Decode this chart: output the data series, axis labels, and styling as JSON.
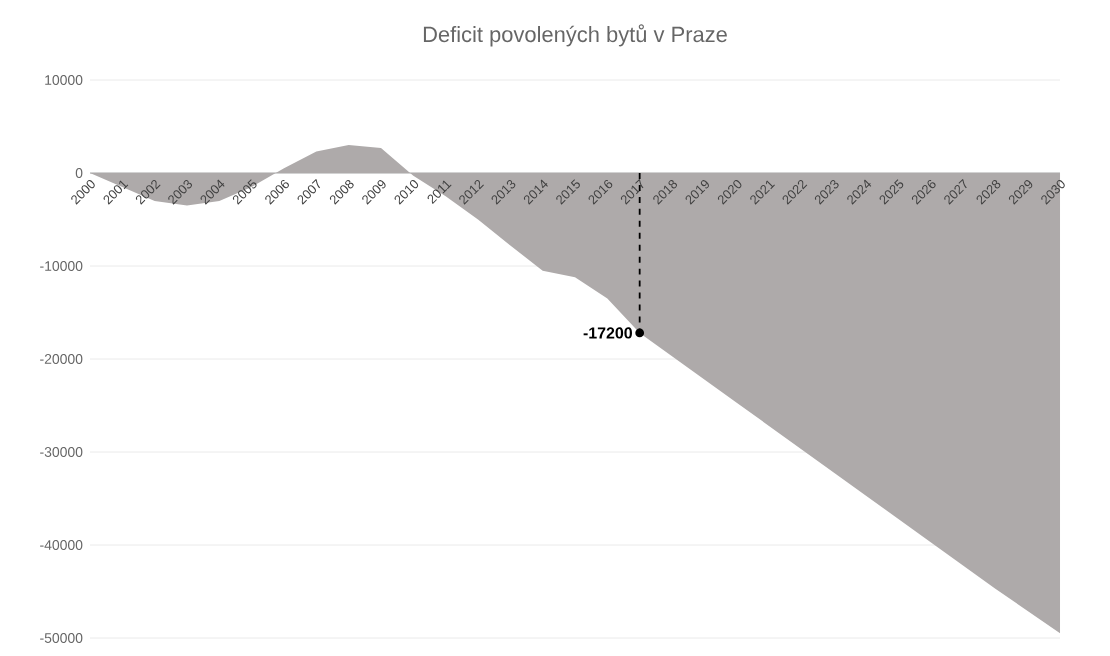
{
  "chart_data": {
    "type": "area",
    "title": "Deficit povolených bytů v Praze",
    "x": [
      2000,
      2001,
      2002,
      2003,
      2004,
      2005,
      2006,
      2007,
      2008,
      2009,
      2010,
      2011,
      2012,
      2013,
      2014,
      2015,
      2016,
      2017,
      2018,
      2019,
      2020,
      2021,
      2022,
      2023,
      2024,
      2025,
      2026,
      2027,
      2028,
      2029,
      2030
    ],
    "series": [
      {
        "color": "#aeaaaa",
        "values": [
          0,
          -1500,
          -3000,
          -3500,
          -3000,
          -1500,
          500,
          2300,
          3000,
          2700,
          -300,
          -2500,
          -5000,
          -7800,
          -10500,
          -11200,
          -13500,
          -17200,
          -19700,
          -22200,
          -24700,
          -27200,
          -29700,
          -32200,
          -34700,
          -37200,
          -39700,
          -42200,
          -44700,
          -47100,
          -49500
        ]
      }
    ],
    "xlim": [
      2000,
      2030
    ],
    "xticks": [
      2000,
      2001,
      2002,
      2003,
      2004,
      2005,
      2006,
      2007,
      2008,
      2009,
      2010,
      2011,
      2012,
      2013,
      2014,
      2015,
      2016,
      2017,
      2018,
      2019,
      2020,
      2021,
      2022,
      2023,
      2024,
      2025,
      2026,
      2027,
      2028,
      2029,
      2030
    ],
    "ylim": [
      -50000,
      10000
    ],
    "yticks": [
      -50000,
      -40000,
      -30000,
      -20000,
      -10000,
      0,
      10000
    ],
    "grid": "y",
    "annotations": [
      {
        "text": "-17200",
        "x": 2017,
        "y": -17200
      }
    ]
  }
}
